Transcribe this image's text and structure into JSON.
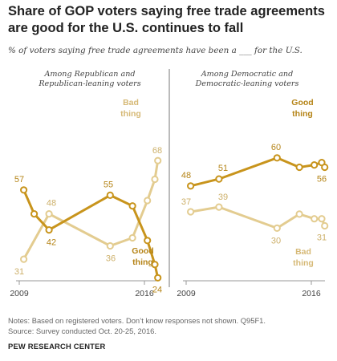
{
  "title": "Share of GOP voters saying free trade agreements are good for the U.S. continues to fall",
  "subtitle": "% of voters saying free trade agreements have been a ___ for the U.S.",
  "colors": {
    "good": "#c8941c",
    "bad": "#e3cc90",
    "divider": "#777777",
    "axis": "#999999"
  },
  "chart_data": [
    {
      "type": "line",
      "panel_title": [
        "Among Republican and",
        "Republican-leaning voters"
      ],
      "x_ticks": [
        "2009",
        "2016"
      ],
      "ylim": [
        0,
        100
      ],
      "series": [
        {
          "name": "Good thing",
          "label_lines": [
            "Good",
            "thing"
          ],
          "x": [
            "2009-04",
            "2009-11",
            "2010-09",
            "2014-02",
            "2015-05",
            "2016-03",
            "2016-08",
            "2016-10"
          ],
          "values": [
            57,
            48,
            42,
            55,
            51,
            38,
            29,
            24
          ],
          "labels": {
            "0": "57",
            "2": "42",
            "3": "55",
            "7": "24"
          }
        },
        {
          "name": "Bad thing",
          "label_lines": [
            "Bad",
            "thing"
          ],
          "x": [
            "2009-04",
            "2010-09",
            "2014-02",
            "2015-05",
            "2016-03",
            "2016-08",
            "2016-10"
          ],
          "values": [
            31,
            48,
            36,
            39,
            53,
            61,
            68
          ],
          "labels": {
            "0": "31",
            "1": "48",
            "2": "36",
            "6": "68"
          }
        }
      ]
    },
    {
      "type": "line",
      "panel_title": [
        "Among Democratic and",
        "Democratic-leaning voters"
      ],
      "x_ticks": [
        "2009",
        "2016"
      ],
      "ylim": [
        0,
        100
      ],
      "series": [
        {
          "name": "Good thing",
          "label_lines": [
            "Good",
            "thing"
          ],
          "x": [
            "2009-04",
            "2010-11",
            "2014-02",
            "2015-05",
            "2016-03",
            "2016-08",
            "2016-10"
          ],
          "values": [
            48,
            51,
            60,
            56,
            57,
            58,
            56
          ],
          "labels": {
            "0": "48",
            "1": "51",
            "2": "60",
            "6": "56"
          }
        },
        {
          "name": "Bad thing",
          "label_lines": [
            "Bad",
            "thing"
          ],
          "x": [
            "2009-04",
            "2010-11",
            "2014-02",
            "2015-05",
            "2016-03",
            "2016-08",
            "2016-10"
          ],
          "values": [
            37,
            39,
            30,
            36,
            34,
            34,
            31
          ],
          "labels": {
            "0": "37",
            "1": "39",
            "2": "30",
            "6": "31"
          }
        }
      ]
    }
  ],
  "notes": [
    "Notes: Based on registered voters. Don’t know responses not shown. Q95F1.",
    "Source: Survey conducted Oct. 20-25, 2016."
  ],
  "source_org": "PEW RESEARCH CENTER"
}
